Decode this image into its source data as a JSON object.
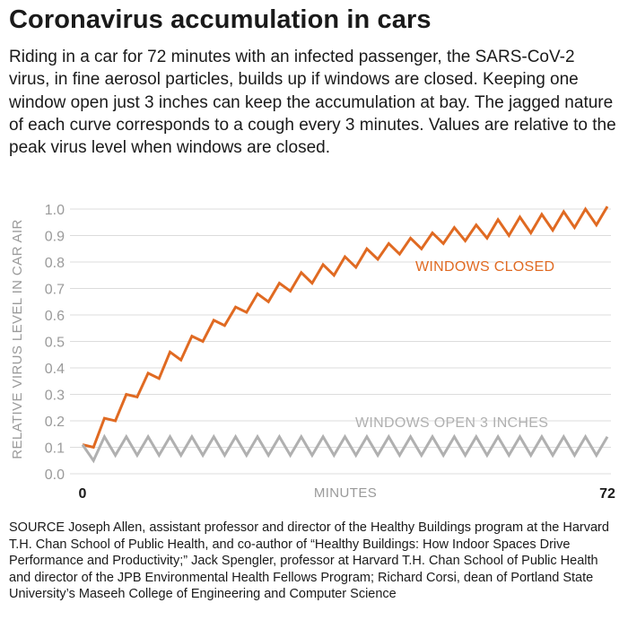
{
  "title": "Coronavirus accumulation in cars",
  "subtitle": "Riding in a car for 72 minutes with an infected passenger, the SARS-CoV-2 virus, in fine aerosol particles, builds up if windows are closed. Keeping one window open just 3 inches can keep the accumulation at bay. The jagged nature of each curve corresponds to a cough every 3 minutes. Values are relative to the peak virus level when windows are closed.",
  "source": "SOURCE Joseph Allen, assistant professor and director of the Healthy Buildings program at the Harvard T.H. Chan School of Public Health, and co-author of “Healthy Buildings: How Indoor Spaces Drive Performance and Productivity;” Jack Spengler, professor at Harvard T.H. Chan School of Public Health and director of the JPB Environmental Health Fellows Program; Richard Corsi, dean of Portland State University’s Maseeh College of Engineering and Computer Science",
  "colors": {
    "closed": "#e06a22",
    "open": "#b0b0b0",
    "grid": "#dcdcdc",
    "tick": "#9a9a9a"
  },
  "chart_data": {
    "type": "line",
    "title": "",
    "xlabel": "MINUTES",
    "ylabel": "RELATIVE VIRUS LEVEL IN CAR AIR",
    "xlim": [
      0,
      72
    ],
    "ylim": [
      0,
      1.0
    ],
    "x_ticks": [
      "0",
      "72"
    ],
    "y_ticks": [
      "0.0",
      "0.1",
      "0.2",
      "0.3",
      "0.4",
      "0.5",
      "0.6",
      "0.7",
      "0.8",
      "0.9",
      "1.0"
    ],
    "grid": true,
    "annotations": [
      {
        "text": "WINDOWS CLOSED",
        "series": "closed"
      },
      {
        "text": "WINDOWS OPEN 3 INCHES",
        "series": "open"
      }
    ],
    "series": [
      {
        "key": "closed",
        "x": [
          0,
          1.5,
          3,
          4.5,
          6,
          7.5,
          9,
          10.5,
          12,
          13.5,
          15,
          16.5,
          18,
          19.5,
          21,
          22.5,
          24,
          25.5,
          27,
          28.5,
          30,
          31.5,
          33,
          34.5,
          36,
          37.5,
          39,
          40.5,
          42,
          43.5,
          45,
          46.5,
          48,
          49.5,
          51,
          52.5,
          54,
          55.5,
          57,
          58.5,
          60,
          61.5,
          63,
          64.5,
          66,
          67.5,
          69,
          70.5,
          72
        ],
        "values": [
          0.11,
          0.1,
          0.21,
          0.2,
          0.3,
          0.29,
          0.38,
          0.36,
          0.46,
          0.43,
          0.52,
          0.5,
          0.58,
          0.56,
          0.63,
          0.61,
          0.68,
          0.65,
          0.72,
          0.69,
          0.76,
          0.72,
          0.79,
          0.75,
          0.82,
          0.78,
          0.85,
          0.81,
          0.87,
          0.83,
          0.89,
          0.85,
          0.91,
          0.87,
          0.93,
          0.88,
          0.94,
          0.89,
          0.96,
          0.9,
          0.97,
          0.91,
          0.98,
          0.92,
          0.99,
          0.93,
          1.0,
          0.94,
          1.01
        ]
      },
      {
        "key": "open",
        "x": [
          0,
          1.5,
          3,
          4.5,
          6,
          7.5,
          9,
          10.5,
          12,
          13.5,
          15,
          16.5,
          18,
          19.5,
          21,
          22.5,
          24,
          25.5,
          27,
          28.5,
          30,
          31.5,
          33,
          34.5,
          36,
          37.5,
          39,
          40.5,
          42,
          43.5,
          45,
          46.5,
          48,
          49.5,
          51,
          52.5,
          54,
          55.5,
          57,
          58.5,
          60,
          61.5,
          63,
          64.5,
          66,
          67.5,
          69,
          70.5,
          72
        ],
        "values": [
          0.11,
          0.05,
          0.14,
          0.07,
          0.14,
          0.07,
          0.14,
          0.07,
          0.14,
          0.07,
          0.14,
          0.07,
          0.14,
          0.07,
          0.14,
          0.07,
          0.14,
          0.07,
          0.14,
          0.07,
          0.14,
          0.07,
          0.14,
          0.07,
          0.14,
          0.07,
          0.14,
          0.07,
          0.14,
          0.07,
          0.14,
          0.07,
          0.14,
          0.07,
          0.14,
          0.07,
          0.14,
          0.07,
          0.14,
          0.07,
          0.14,
          0.07,
          0.14,
          0.07,
          0.14,
          0.07,
          0.14,
          0.07,
          0.14
        ]
      }
    ]
  }
}
